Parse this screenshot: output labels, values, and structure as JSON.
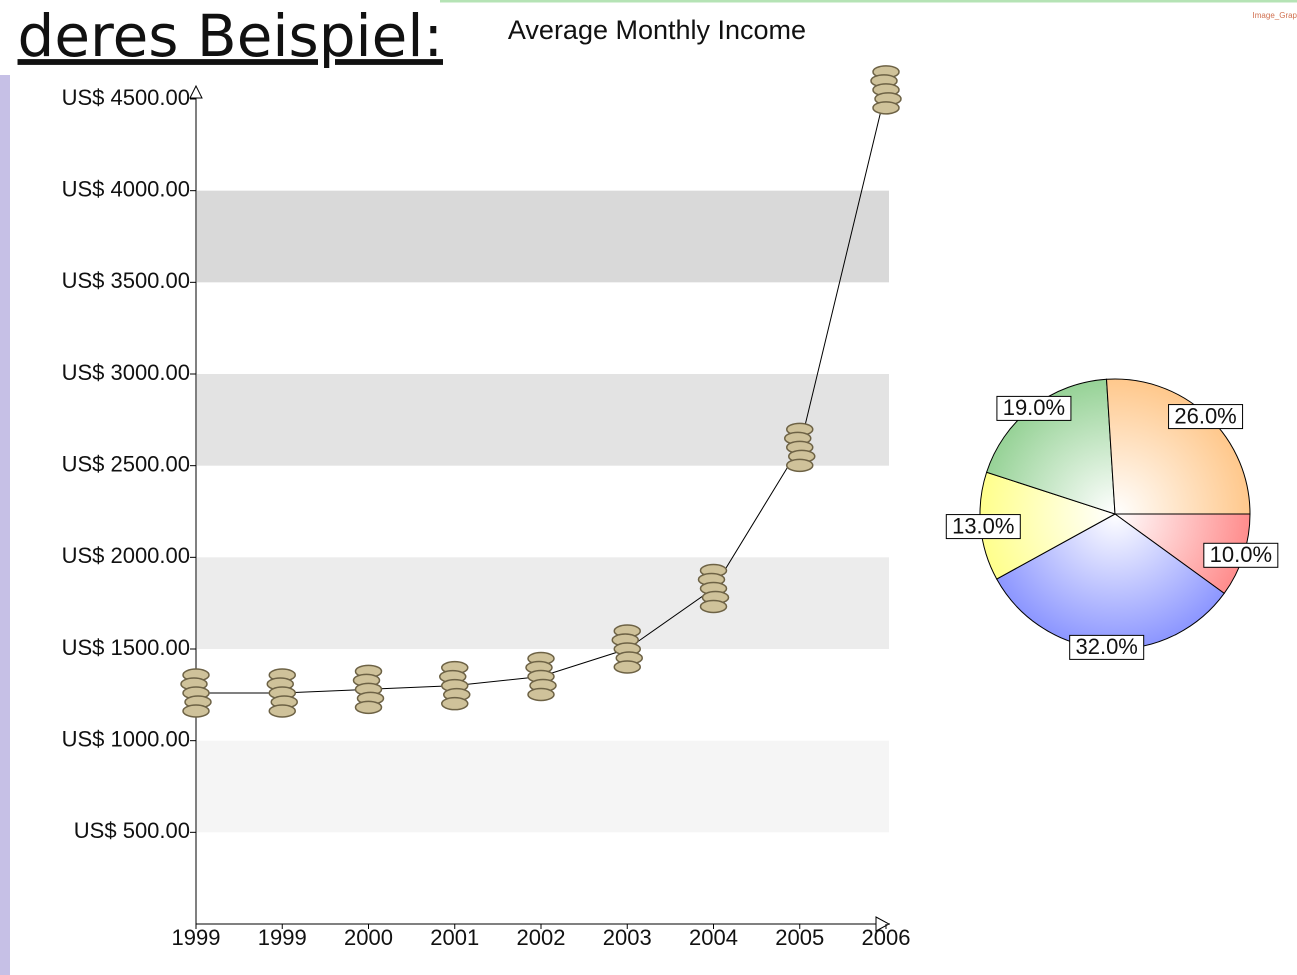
{
  "header": {
    "title": "deres Beispiel:",
    "watermark": "Image_Grap"
  },
  "chart_data": [
    {
      "type": "line",
      "title": "Average Monthly Income",
      "categories": [
        "1999",
        "1999",
        "2000",
        "2001",
        "2002",
        "2003",
        "2004",
        "2005",
        "2006"
      ],
      "values": [
        1260,
        1260,
        1280,
        1300,
        1350,
        1500,
        1830,
        2600,
        4550
      ],
      "color": "#000000",
      "ylim": [
        0,
        4500
      ],
      "yticks": [
        {
          "value": 500,
          "label": "US$ 500.00"
        },
        {
          "value": 1000,
          "label": "US$ 1000.00"
        },
        {
          "value": 1500,
          "label": "US$ 1500.00"
        },
        {
          "value": 2000,
          "label": "US$ 2000.00"
        },
        {
          "value": 2500,
          "label": "US$ 2500.00"
        },
        {
          "value": 3000,
          "label": "US$ 3000.00"
        },
        {
          "value": 3500,
          "label": "US$ 3500.00"
        },
        {
          "value": 4000,
          "label": "US$ 4000.00"
        },
        {
          "value": 4500,
          "label": "US$ 4500.00"
        }
      ],
      "band_colors": [
        "#f5f5f5",
        "#ececec",
        "#e3e3e3",
        "#d9d9d9"
      ]
    },
    {
      "type": "pie",
      "values": [
        10,
        32,
        13,
        19,
        26
      ],
      "value_labels": [
        "10.0%",
        "32.0%",
        "13.0%",
        "19.0%",
        "26.0%"
      ],
      "colors": [
        "#ff8c8c",
        "#8c96ff",
        "#ffff8c",
        "#96d296",
        "#ffc88c"
      ]
    }
  ]
}
